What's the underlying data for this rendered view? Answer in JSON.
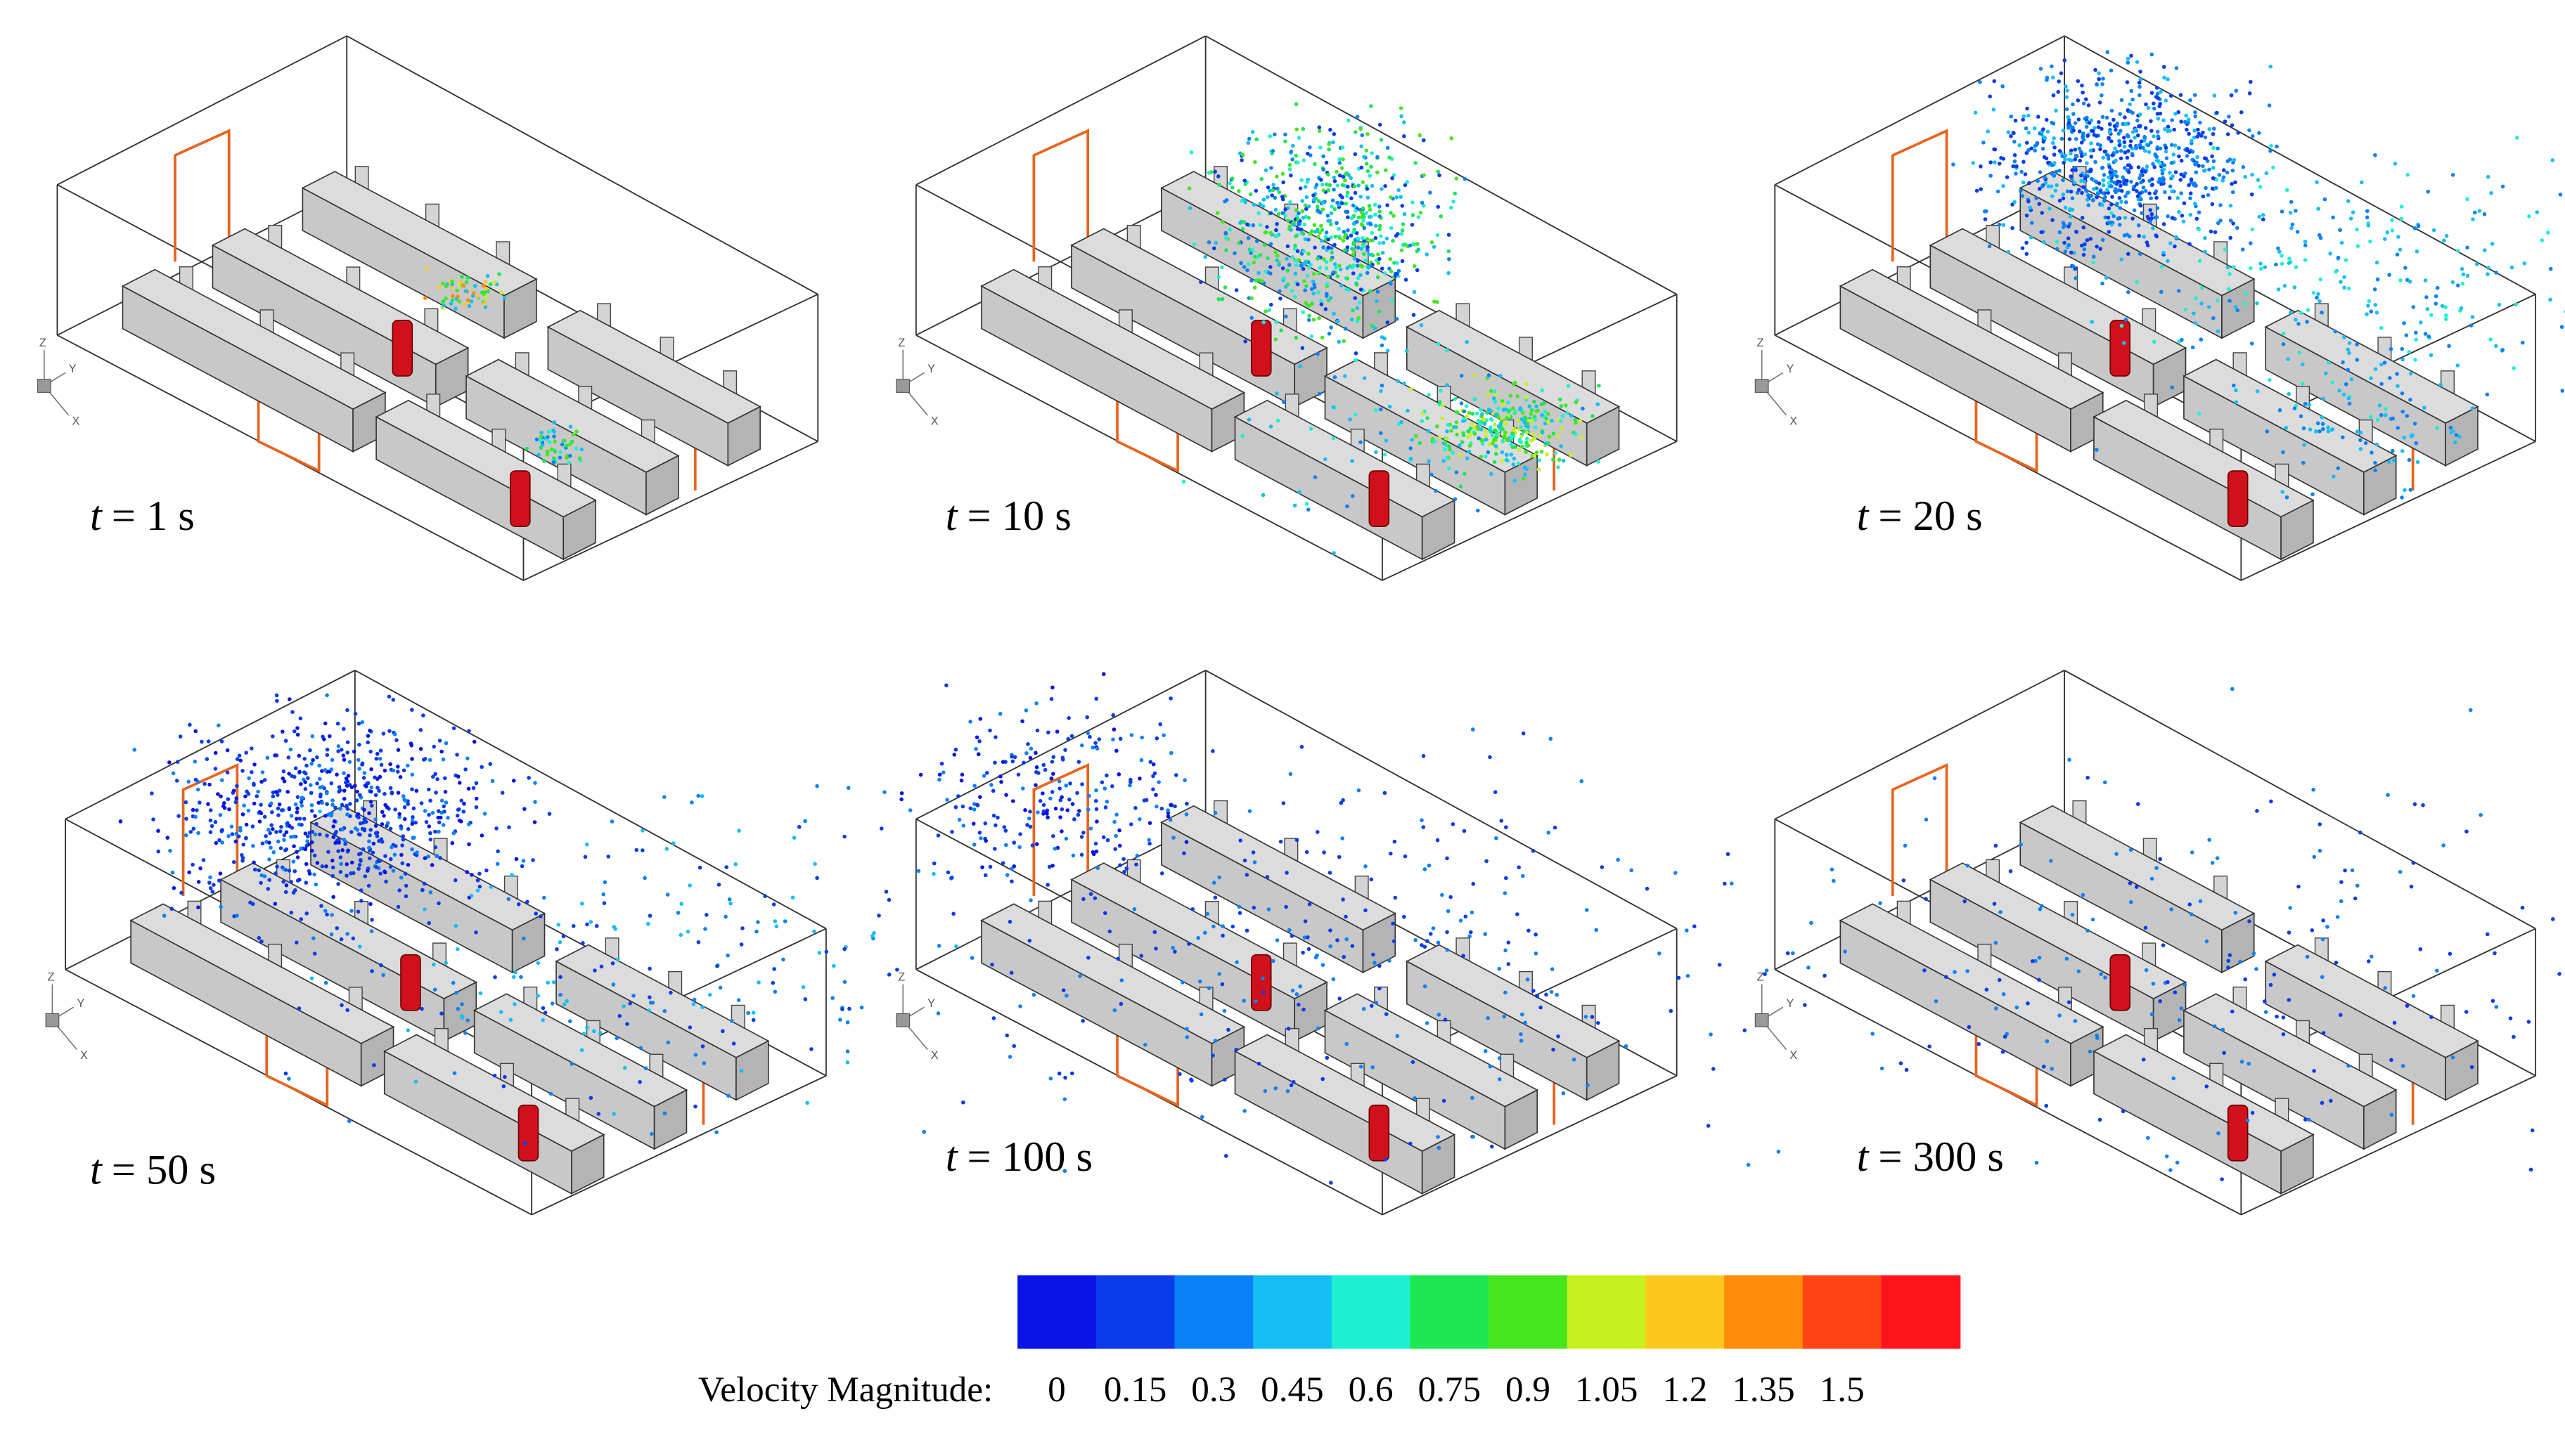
{
  "panels": [
    {
      "variable": "t",
      "value": "= 1 s"
    },
    {
      "variable": "t",
      "value": "= 10 s"
    },
    {
      "variable": "t",
      "value": "= 20 s"
    },
    {
      "variable": "t",
      "value": "= 50 s"
    },
    {
      "variable": "t",
      "value": "= 100 s"
    },
    {
      "variable": "t",
      "value": "= 300 s"
    }
  ],
  "triad": {
    "z": "Z",
    "y": "Y",
    "x": "X"
  },
  "colorbar": {
    "label": "Velocity Magnitude:",
    "clim": [
      0,
      1.5
    ],
    "ticks": [
      0,
      0.15,
      0.3,
      0.45,
      0.6,
      0.75,
      0.9,
      1.05,
      1.2,
      1.35,
      1.5
    ],
    "colors": [
      "#0a14e6",
      "#0a3ceb",
      "#0a82f5",
      "#14bef5",
      "#1ef0d2",
      "#1ee650",
      "#46e61e",
      "#c8f01e",
      "#ffc81e",
      "#ff8c0a",
      "#ff4614",
      "#ff141e"
    ]
  }
}
